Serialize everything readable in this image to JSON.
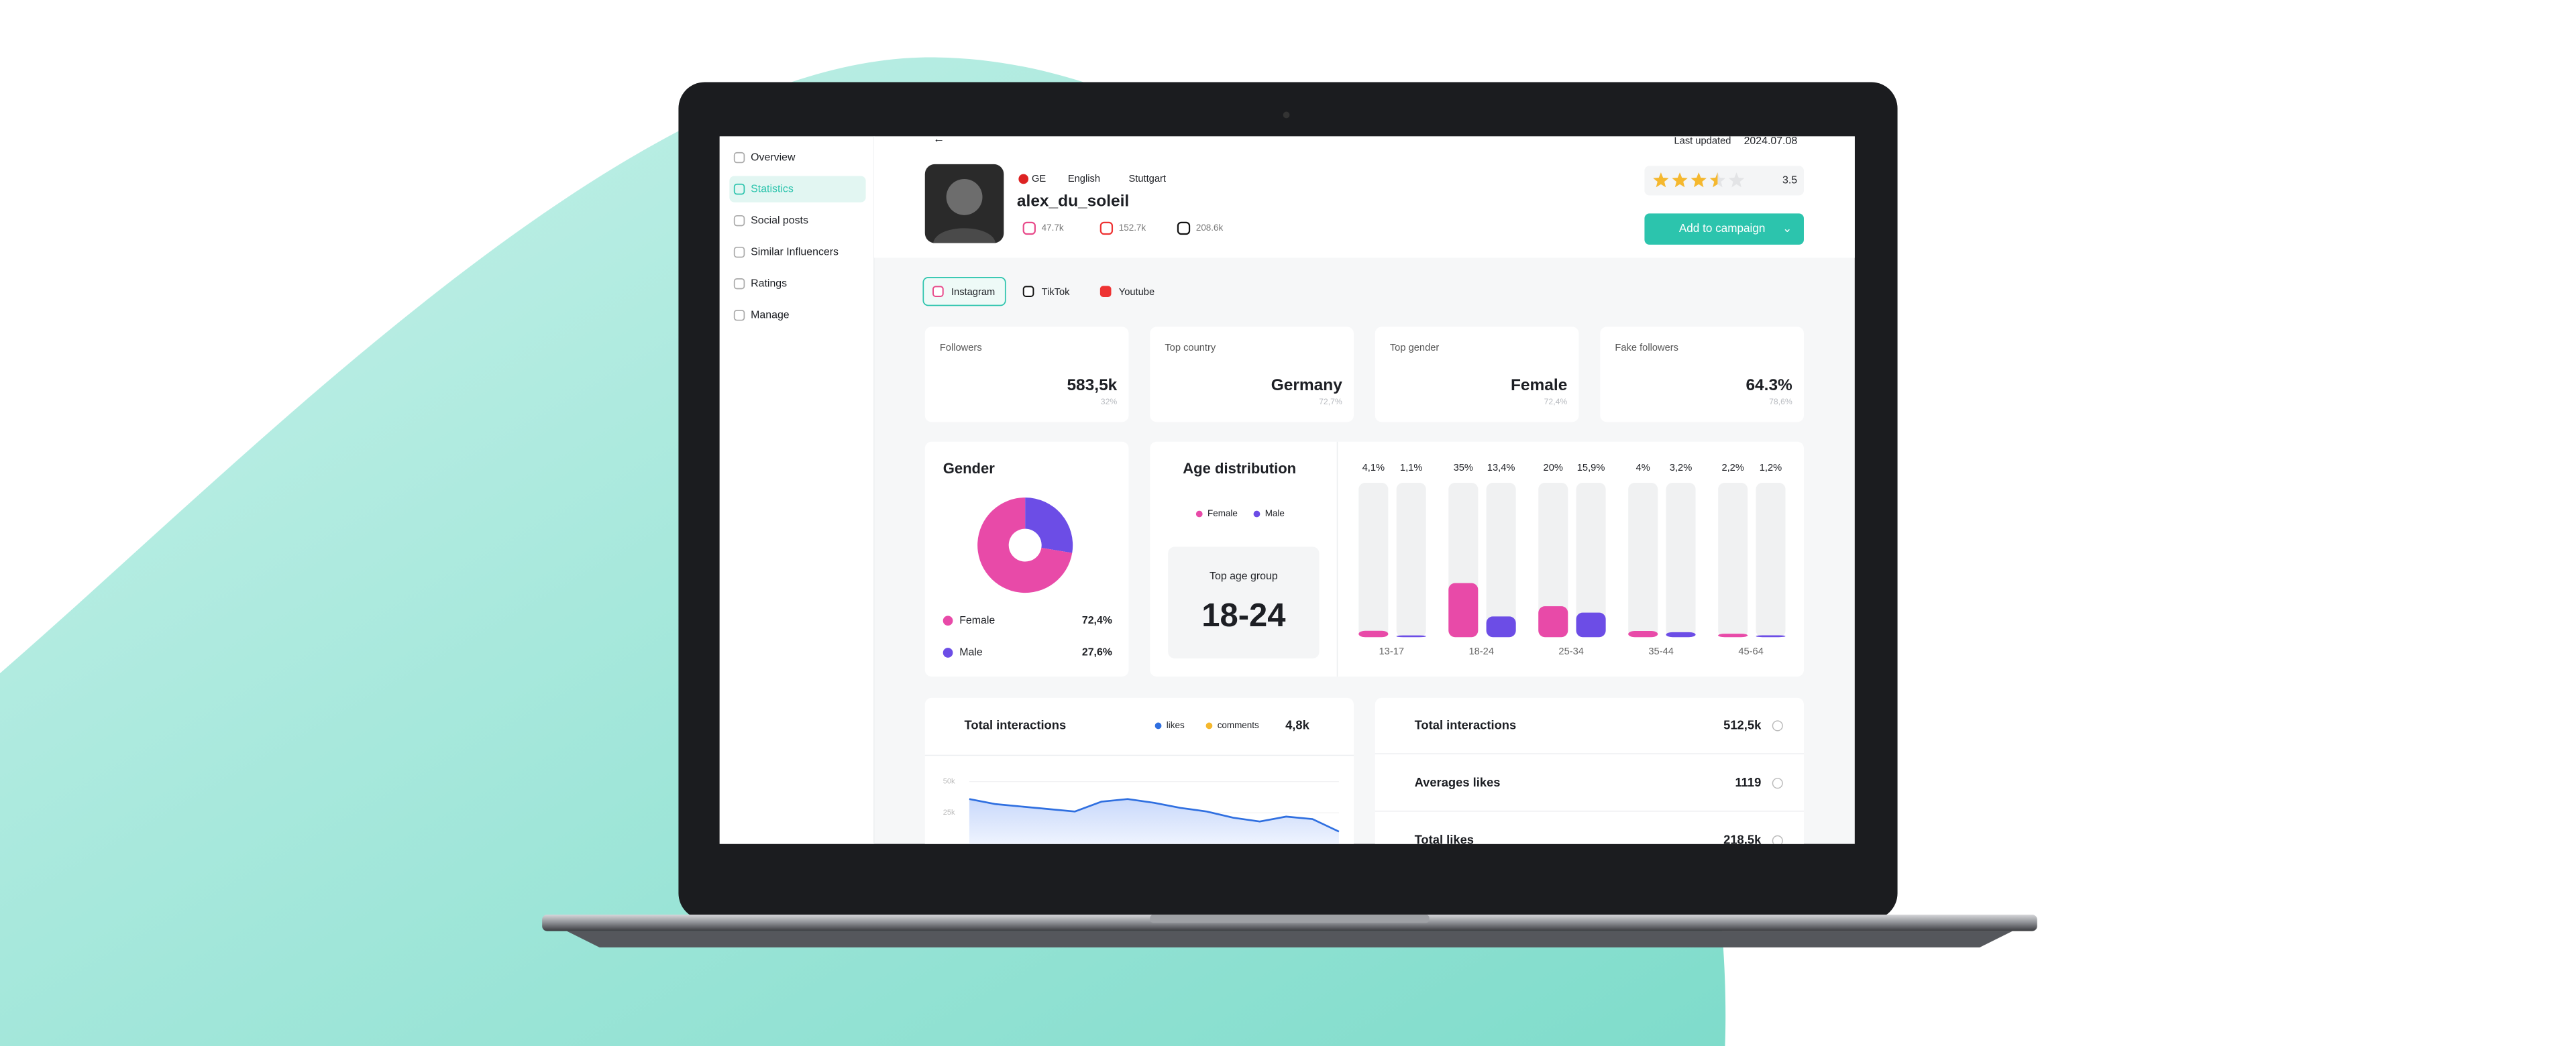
{
  "sidebar": {
    "items": [
      "Overview",
      "Statistics",
      "Social posts",
      "Similar Influencers",
      "Ratings",
      "Manage"
    ],
    "active": 1
  },
  "header": {
    "last_updated_label": "Last updated",
    "last_updated": "2024.07.08",
    "country": "GE",
    "language": "English",
    "city": "Stuttgart",
    "username": "alex_du_soleil",
    "social_counts": [
      "47.7k",
      "152.7k",
      "208.6k"
    ],
    "rating": 3.5,
    "stars": 5,
    "button": "Add to campaign"
  },
  "tabs": {
    "items": [
      "Instagram",
      "TikTok",
      "Youtube"
    ],
    "active": 0
  },
  "stats": [
    {
      "label": "Followers",
      "value": "583,5k",
      "sub": "32%"
    },
    {
      "label": "Top country",
      "value": "Germany",
      "sub": "72,7%"
    },
    {
      "label": "Top gender",
      "value": "Female",
      "sub": "72,4%"
    },
    {
      "label": "Fake followers",
      "value": "64.3%",
      "sub": "78,6%"
    }
  ],
  "gender": {
    "title": "Gender",
    "series": [
      {
        "name": "Female",
        "value": 72.4,
        "label": "72,4%",
        "color": "#e84aa8"
      },
      {
        "name": "Male",
        "value": 27.6,
        "label": "27,6%",
        "color": "#6c4de6"
      }
    ]
  },
  "age": {
    "title": "Age distribution",
    "top_label": "Top age group",
    "top_value": "18-24",
    "categories": [
      "13-17",
      "18-24",
      "25-34",
      "35-44",
      "45-64"
    ],
    "ylim": [
      0,
      100
    ],
    "series": [
      {
        "name": "Female",
        "color": "#e84aa8",
        "values": [
          4.1,
          35,
          20,
          4,
          2.2
        ],
        "value_labels": [
          "4,1%",
          "35%",
          "20%",
          "4%",
          "2,2%"
        ]
      },
      {
        "name": "Male",
        "color": "#6c4de6",
        "values": [
          1.1,
          13.4,
          15.9,
          3.2,
          1.2
        ],
        "value_labels": [
          "1,1%",
          "13,4%",
          "15,9%",
          "3,2%",
          "1,2%"
        ]
      }
    ]
  },
  "interactions": {
    "title": "Total interactions",
    "legend": [
      {
        "name": "likes",
        "color": "#2f6fe0"
      },
      {
        "name": "comments",
        "color": "#f5b82e"
      }
    ],
    "total": "4,8k",
    "ylim": [
      0,
      50000
    ],
    "yticks": [
      {
        "value": 25000,
        "label": "25k"
      },
      {
        "value": 50000,
        "label": "50k"
      }
    ],
    "values": [
      36000,
      32000,
      30000,
      28000,
      26000,
      34000,
      36000,
      33000,
      29000,
      26000,
      21000,
      18000,
      22000,
      20000,
      10000
    ]
  },
  "summary": [
    {
      "label": "Total interactions",
      "value": "512,5k"
    },
    {
      "label": "Averages likes",
      "value": "1119"
    },
    {
      "label": "Total likes",
      "value": "218,5k"
    }
  ]
}
